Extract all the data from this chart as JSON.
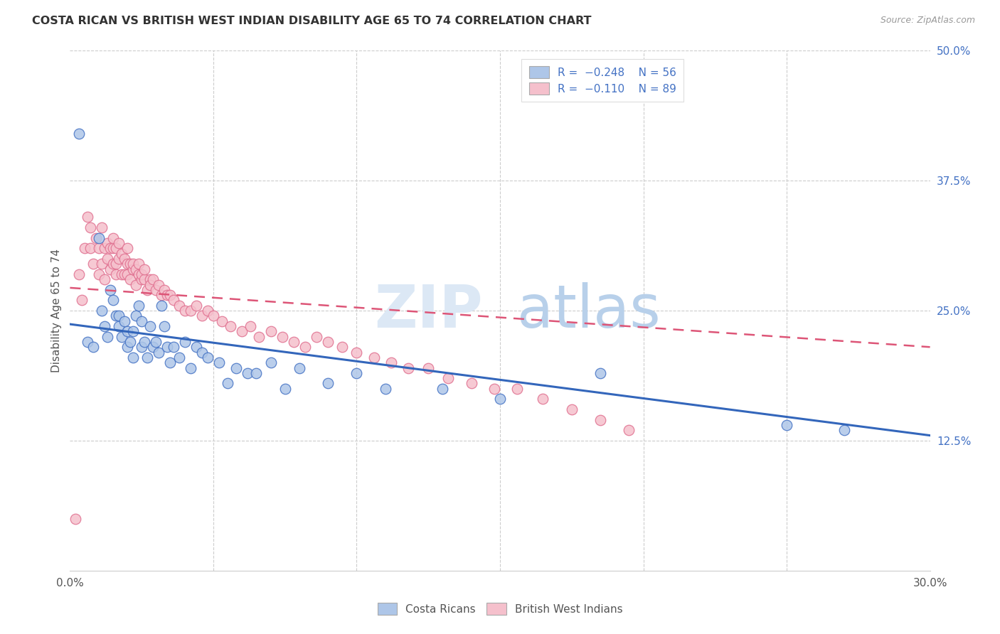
{
  "title": "COSTA RICAN VS BRITISH WEST INDIAN DISABILITY AGE 65 TO 74 CORRELATION CHART",
  "source": "Source: ZipAtlas.com",
  "ylabel": "Disability Age 65 to 74",
  "xlim": [
    0.0,
    0.3
  ],
  "ylim": [
    0.0,
    0.5
  ],
  "xtick_positions": [
    0.0,
    0.05,
    0.1,
    0.15,
    0.2,
    0.25,
    0.3
  ],
  "xtick_labels": [
    "0.0%",
    "",
    "",
    "",
    "",
    "",
    "30.0%"
  ],
  "yticks_right": [
    0.125,
    0.25,
    0.375,
    0.5
  ],
  "ytick_labels_right": [
    "12.5%",
    "25.0%",
    "37.5%",
    "50.0%"
  ],
  "blue_color": "#4472c4",
  "pink_color": "#e07090",
  "blue_fill": "#aec6e8",
  "pink_fill": "#f5c0cc",
  "blue_line_color": "#3366bb",
  "pink_line_color": "#dd5577",
  "grid_color": "#cccccc",
  "blue_line_x0": 0.0,
  "blue_line_y0": 0.237,
  "blue_line_x1": 0.3,
  "blue_line_y1": 0.13,
  "pink_line_x0": 0.0,
  "pink_line_y0": 0.272,
  "pink_line_x1": 0.3,
  "pink_line_y1": 0.215,
  "costa_rican_x": [
    0.003,
    0.006,
    0.008,
    0.01,
    0.011,
    0.012,
    0.013,
    0.014,
    0.015,
    0.016,
    0.017,
    0.017,
    0.018,
    0.019,
    0.02,
    0.02,
    0.021,
    0.022,
    0.022,
    0.023,
    0.024,
    0.025,
    0.025,
    0.026,
    0.027,
    0.028,
    0.029,
    0.03,
    0.031,
    0.032,
    0.033,
    0.034,
    0.035,
    0.036,
    0.038,
    0.04,
    0.042,
    0.044,
    0.046,
    0.048,
    0.052,
    0.055,
    0.058,
    0.062,
    0.065,
    0.07,
    0.075,
    0.08,
    0.09,
    0.1,
    0.11,
    0.13,
    0.15,
    0.185,
    0.25,
    0.27
  ],
  "costa_rican_y": [
    0.42,
    0.22,
    0.215,
    0.32,
    0.25,
    0.235,
    0.225,
    0.27,
    0.26,
    0.245,
    0.235,
    0.245,
    0.225,
    0.24,
    0.23,
    0.215,
    0.22,
    0.205,
    0.23,
    0.245,
    0.255,
    0.24,
    0.215,
    0.22,
    0.205,
    0.235,
    0.215,
    0.22,
    0.21,
    0.255,
    0.235,
    0.215,
    0.2,
    0.215,
    0.205,
    0.22,
    0.195,
    0.215,
    0.21,
    0.205,
    0.2,
    0.18,
    0.195,
    0.19,
    0.19,
    0.2,
    0.175,
    0.195,
    0.18,
    0.19,
    0.175,
    0.175,
    0.165,
    0.19,
    0.14,
    0.135
  ],
  "british_wi_x": [
    0.002,
    0.003,
    0.004,
    0.005,
    0.006,
    0.007,
    0.007,
    0.008,
    0.009,
    0.01,
    0.01,
    0.011,
    0.011,
    0.012,
    0.012,
    0.013,
    0.013,
    0.014,
    0.014,
    0.015,
    0.015,
    0.015,
    0.016,
    0.016,
    0.016,
    0.017,
    0.017,
    0.018,
    0.018,
    0.019,
    0.019,
    0.02,
    0.02,
    0.02,
    0.021,
    0.021,
    0.022,
    0.022,
    0.023,
    0.023,
    0.024,
    0.024,
    0.025,
    0.025,
    0.026,
    0.026,
    0.027,
    0.028,
    0.028,
    0.029,
    0.03,
    0.031,
    0.032,
    0.033,
    0.034,
    0.035,
    0.036,
    0.038,
    0.04,
    0.042,
    0.044,
    0.046,
    0.048,
    0.05,
    0.053,
    0.056,
    0.06,
    0.063,
    0.066,
    0.07,
    0.074,
    0.078,
    0.082,
    0.086,
    0.09,
    0.095,
    0.1,
    0.106,
    0.112,
    0.118,
    0.125,
    0.132,
    0.14,
    0.148,
    0.156,
    0.165,
    0.175,
    0.185,
    0.195
  ],
  "british_wi_y": [
    0.05,
    0.285,
    0.26,
    0.31,
    0.34,
    0.31,
    0.33,
    0.295,
    0.32,
    0.285,
    0.31,
    0.295,
    0.33,
    0.28,
    0.31,
    0.3,
    0.315,
    0.29,
    0.31,
    0.295,
    0.31,
    0.32,
    0.295,
    0.31,
    0.285,
    0.3,
    0.315,
    0.285,
    0.305,
    0.285,
    0.3,
    0.285,
    0.295,
    0.31,
    0.28,
    0.295,
    0.29,
    0.295,
    0.275,
    0.29,
    0.285,
    0.295,
    0.28,
    0.285,
    0.28,
    0.29,
    0.27,
    0.28,
    0.275,
    0.28,
    0.27,
    0.275,
    0.265,
    0.27,
    0.265,
    0.265,
    0.26,
    0.255,
    0.25,
    0.25,
    0.255,
    0.245,
    0.25,
    0.245,
    0.24,
    0.235,
    0.23,
    0.235,
    0.225,
    0.23,
    0.225,
    0.22,
    0.215,
    0.225,
    0.22,
    0.215,
    0.21,
    0.205,
    0.2,
    0.195,
    0.195,
    0.185,
    0.18,
    0.175,
    0.175,
    0.165,
    0.155,
    0.145,
    0.135
  ]
}
